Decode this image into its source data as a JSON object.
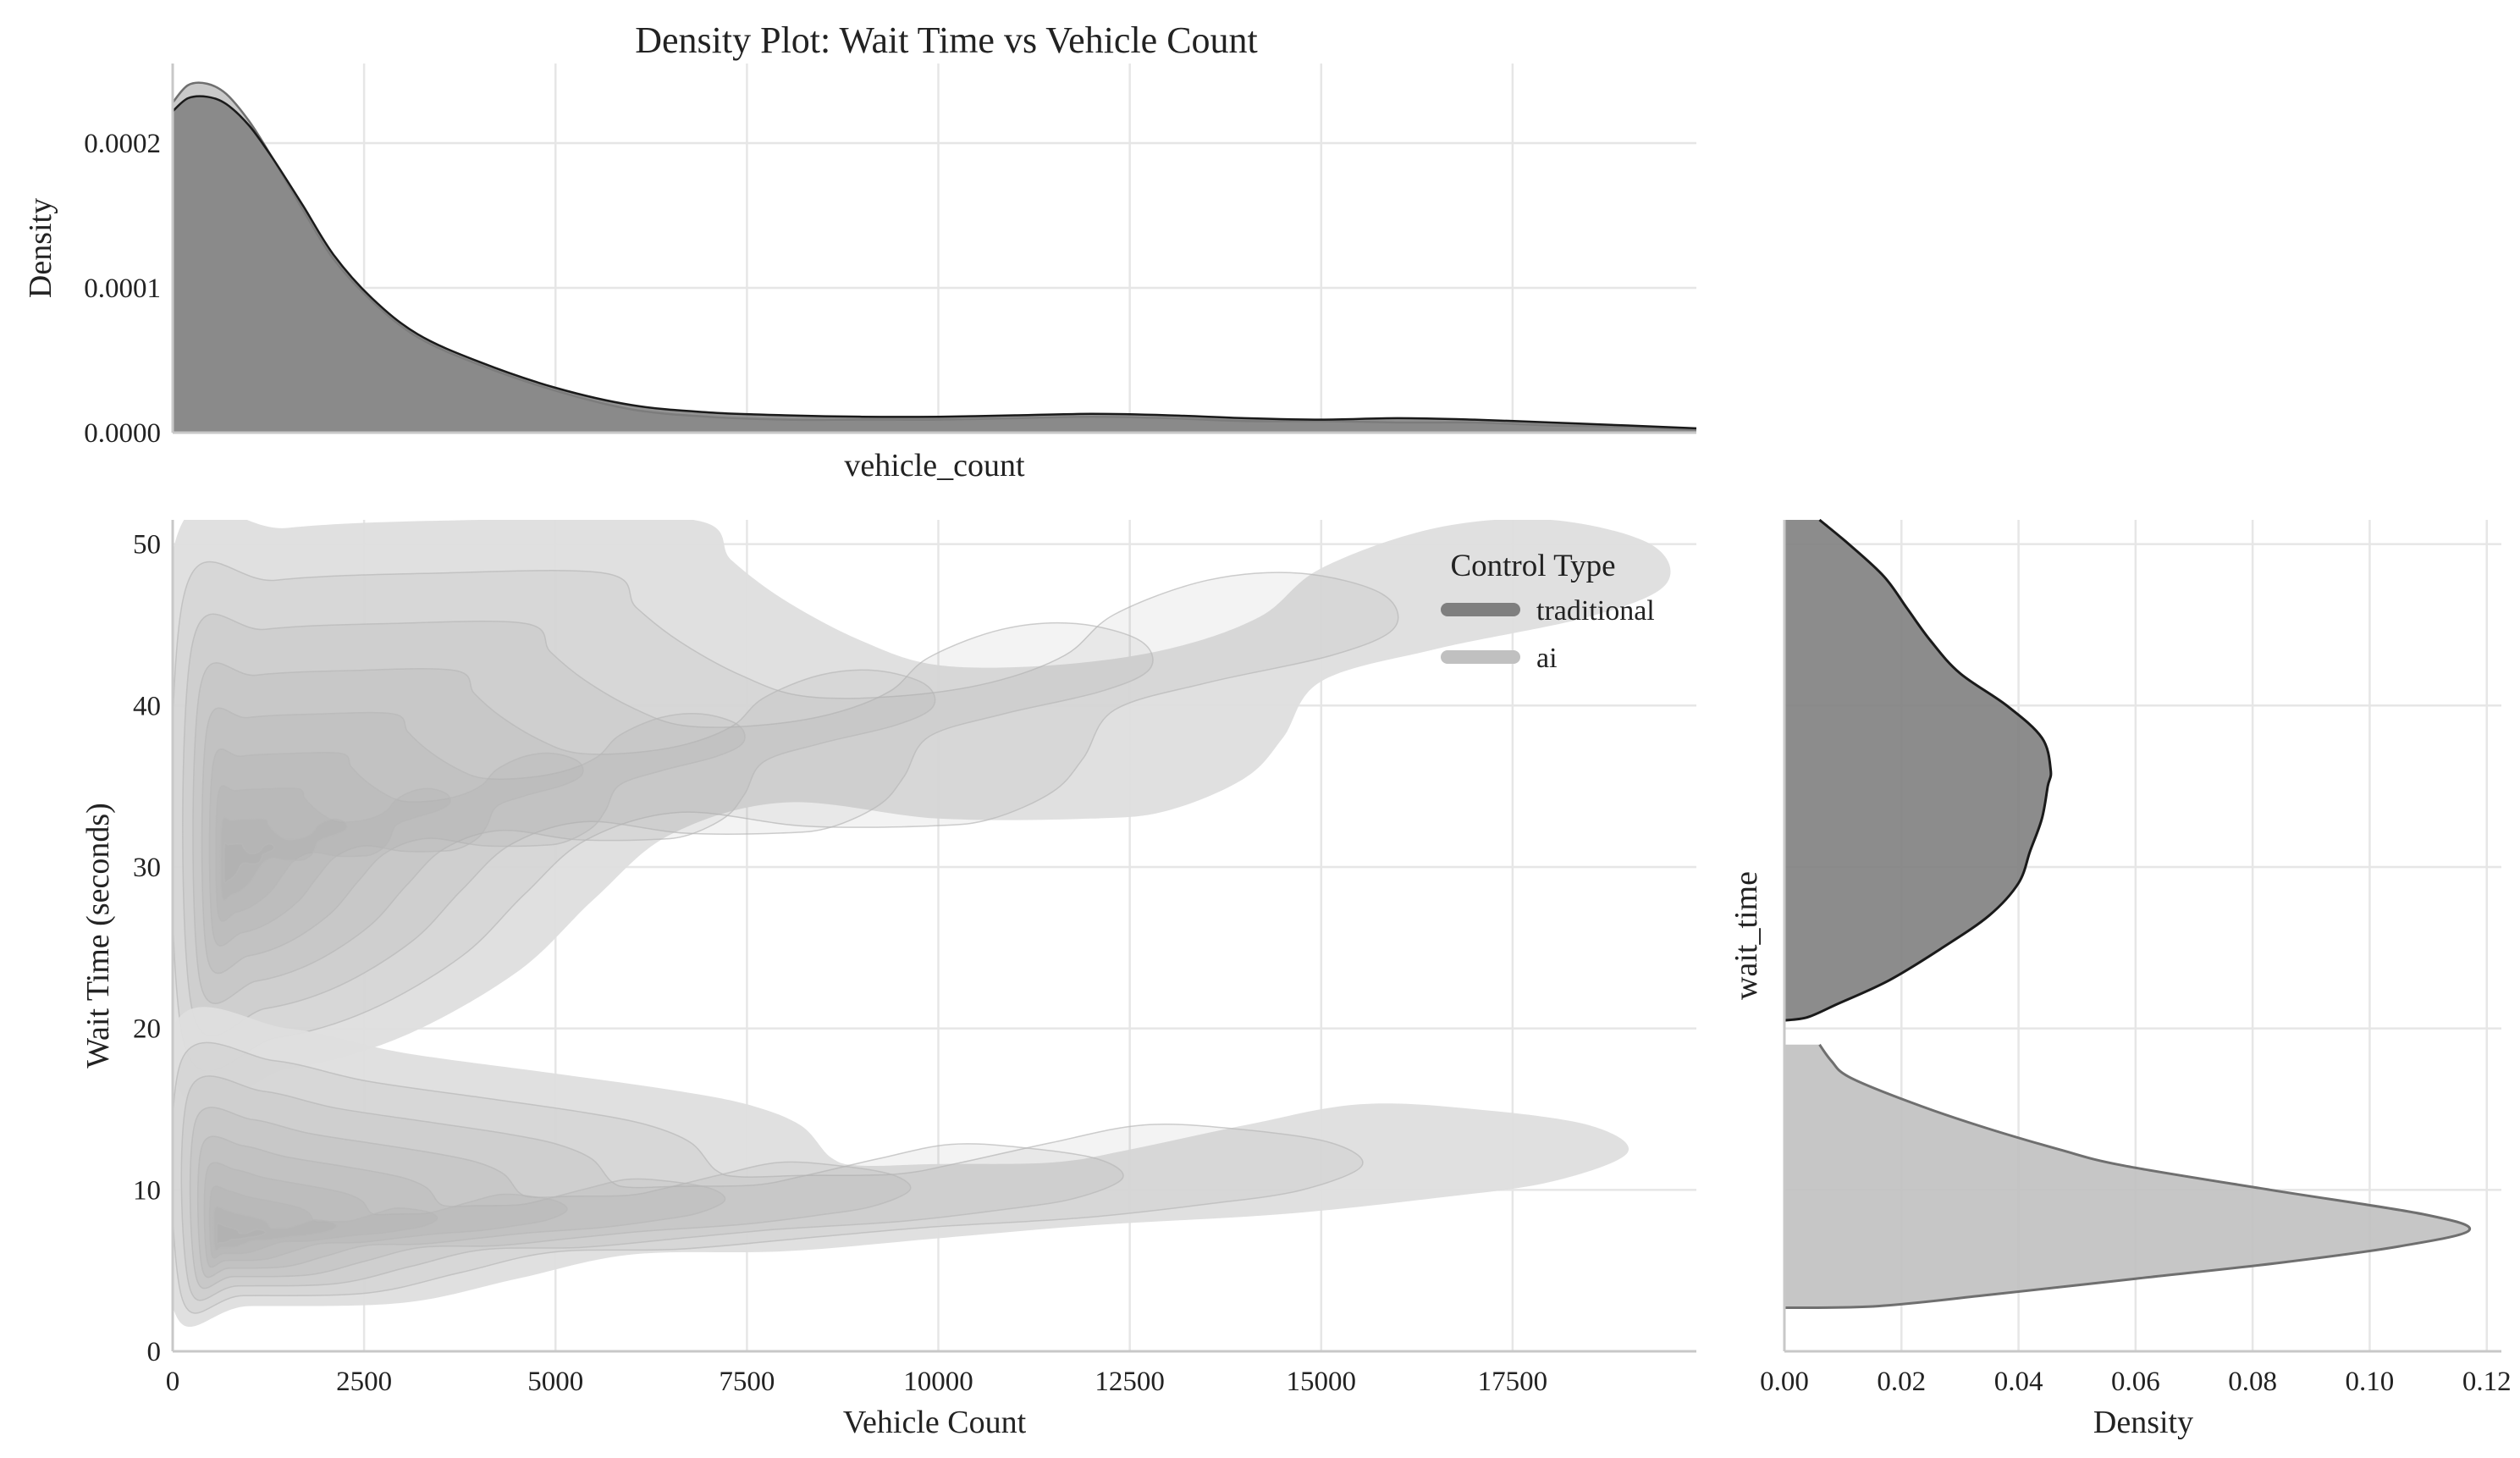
{
  "title": "Density Plot: Wait Time vs Vehicle Count",
  "colors": {
    "traditional": "#7f7f7f",
    "ai": "#c0c0c0",
    "contour": "#d4d4d4",
    "grid": "#e6e6e6"
  },
  "chart_data": [
    {
      "id": "top-marginal",
      "type": "area",
      "xlabel": "vehicle_count",
      "ylabel": "Density",
      "xlim": [
        0,
        19900
      ],
      "ylim": [
        0,
        0.000255
      ],
      "yticks": [
        0.0,
        0.0001,
        0.0002
      ],
      "ytick_labels": [
        "0.0000",
        "0.0001",
        "0.0002"
      ],
      "xgrid": [
        0,
        2500,
        5000,
        7500,
        10000,
        12500,
        15000,
        17500
      ],
      "x": [
        0,
        200,
        450,
        700,
        1000,
        1300,
        1700,
        2100,
        2600,
        3200,
        4000,
        5000,
        6000,
        7000,
        8000,
        9000,
        10000,
        11000,
        12000,
        13000,
        14000,
        15000,
        16000,
        17000,
        18000,
        19000,
        19900
      ],
      "series": [
        {
          "name": "traditional",
          "values": [
            0.000222,
            0.000231,
            0.000232,
            0.000227,
            0.000212,
            0.00019,
            0.000157,
            0.000123,
            9.3e-05,
            6.8e-05,
            4.9e-05,
            3.1e-05,
            1.9e-05,
            1.4e-05,
            1.2e-05,
            1.1e-05,
            1.1e-05,
            1.2e-05,
            1.3e-05,
            1.2e-05,
            1e-05,
            9e-06,
            1e-05,
            9e-06,
            7e-06,
            5e-06,
            3e-06
          ]
        },
        {
          "name": "ai",
          "values": [
            0.000228,
            0.00024,
            0.000241,
            0.000234,
            0.000215,
            0.00019,
            0.000154,
            0.00012,
            9.1e-05,
            6.6e-05,
            4.7e-05,
            2.9e-05,
            1.6e-05,
            1.1e-05,
            9e-06,
            9e-06,
            9e-06,
            1e-05,
            1.1e-05,
            1e-05,
            8e-06,
            8e-06,
            7e-06,
            7e-06,
            5e-06,
            4e-06,
            2e-06
          ]
        }
      ]
    },
    {
      "id": "joint-kde",
      "type": "heatmap",
      "xlabel": "Vehicle Count",
      "ylabel": "Wait Time (seconds)",
      "xlim": [
        0,
        19900
      ],
      "ylim": [
        0,
        51.5
      ],
      "xticks": [
        0,
        2500,
        5000,
        7500,
        10000,
        12500,
        15000,
        17500
      ],
      "xtick_labels": [
        "0",
        "2500",
        "5000",
        "7500",
        "10000",
        "12500",
        "15000",
        "17500"
      ],
      "yticks": [
        0,
        10,
        20,
        30,
        40,
        50
      ],
      "ytick_labels": [
        "0",
        "10",
        "20",
        "30",
        "40",
        "50"
      ],
      "legend": {
        "title": "Control Type",
        "placement": "top-right",
        "entries": [
          "traditional",
          "ai"
        ]
      },
      "clusters": [
        {
          "name": "traditional",
          "outer_region": [
            [
              0,
              49.5
            ],
            [
              1500,
              51
            ],
            [
              4000,
              51.5
            ],
            [
              6800,
              51.5
            ],
            [
              7300,
              49
            ],
            [
              8000,
              46.5
            ],
            [
              9000,
              44
            ],
            [
              10000,
              42.5
            ],
            [
              11500,
              42.5
            ],
            [
              13000,
              43.5
            ],
            [
              14200,
              45.5
            ],
            [
              15000,
              48.5
            ],
            [
              16500,
              51
            ],
            [
              18000,
              51.5
            ],
            [
              19300,
              50
            ],
            [
              19500,
              47.5
            ],
            [
              18500,
              45.5
            ],
            [
              16500,
              43.5
            ],
            [
              15000,
              41.5
            ],
            [
              14500,
              38
            ],
            [
              14000,
              35.5
            ],
            [
              13000,
              33.5
            ],
            [
              12000,
              33
            ],
            [
              10000,
              33
            ],
            [
              8000,
              34
            ],
            [
              6500,
              32
            ],
            [
              5500,
              28
            ],
            [
              4500,
              23.5
            ],
            [
              3000,
              19.5
            ],
            [
              1500,
              17.5
            ],
            [
              0,
              17.5
            ]
          ],
          "peak": [
            700,
            30
          ],
          "levels": 9
        },
        {
          "name": "ai",
          "outer_region": [
            [
              0,
              20
            ],
            [
              1500,
              20
            ],
            [
              3000,
              18.5
            ],
            [
              5000,
              17.2
            ],
            [
              6500,
              16.2
            ],
            [
              7500,
              15.3
            ],
            [
              8200,
              14
            ],
            [
              8600,
              12
            ],
            [
              9000,
              11.5
            ],
            [
              10000,
              11.6
            ],
            [
              11500,
              11.7
            ],
            [
              12500,
              12.5
            ],
            [
              14000,
              14
            ],
            [
              15500,
              15.3
            ],
            [
              17000,
              15
            ],
            [
              18500,
              14
            ],
            [
              19000,
              12.3
            ],
            [
              18000,
              10.5
            ],
            [
              16500,
              9.5
            ],
            [
              14500,
              8.5
            ],
            [
              12000,
              7.8
            ],
            [
              10000,
              7
            ],
            [
              8000,
              6.2
            ],
            [
              6000,
              6
            ],
            [
              4500,
              4.5
            ],
            [
              3000,
              3
            ],
            [
              1000,
              2.8
            ],
            [
              0,
              2.8
            ]
          ],
          "peak": [
            600,
            7
          ],
          "levels": 9
        }
      ]
    },
    {
      "id": "right-marginal",
      "type": "area",
      "xlabel": "Density",
      "ylabel": "wait_time",
      "xlim": [
        0,
        0.1225
      ],
      "ylim": [
        0,
        51.5
      ],
      "xticks": [
        0.0,
        0.02,
        0.04,
        0.06,
        0.08,
        0.1,
        0.12
      ],
      "xtick_labels": [
        "0.00",
        "0.02",
        "0.04",
        "0.06",
        "0.08",
        "0.10",
        "0.12"
      ],
      "ygrid": [
        0,
        10,
        20,
        30,
        40,
        50
      ],
      "series": [
        {
          "name": "traditional",
          "y": [
            20.5,
            20.7,
            21.5,
            23,
            25,
            27,
            29,
            31,
            33,
            35,
            36,
            38,
            40,
            42,
            44,
            46,
            48,
            50,
            51.5
          ],
          "values": [
            0.0,
            0.004,
            0.009,
            0.018,
            0.027,
            0.035,
            0.04,
            0.042,
            0.044,
            0.045,
            0.0455,
            0.044,
            0.038,
            0.03,
            0.025,
            0.021,
            0.017,
            0.011,
            0.006
          ]
        },
        {
          "name": "ai",
          "y": [
            2.7,
            2.8,
            3.5,
            4.5,
            5.5,
            6.5,
            7.5,
            8.5,
            10,
            11.5,
            12.5,
            14,
            15.5,
            17,
            18,
            19
          ],
          "values": [
            0.0,
            0.016,
            0.035,
            0.06,
            0.085,
            0.105,
            0.117,
            0.109,
            0.083,
            0.058,
            0.047,
            0.033,
            0.021,
            0.011,
            0.008,
            0.006
          ]
        }
      ]
    }
  ]
}
